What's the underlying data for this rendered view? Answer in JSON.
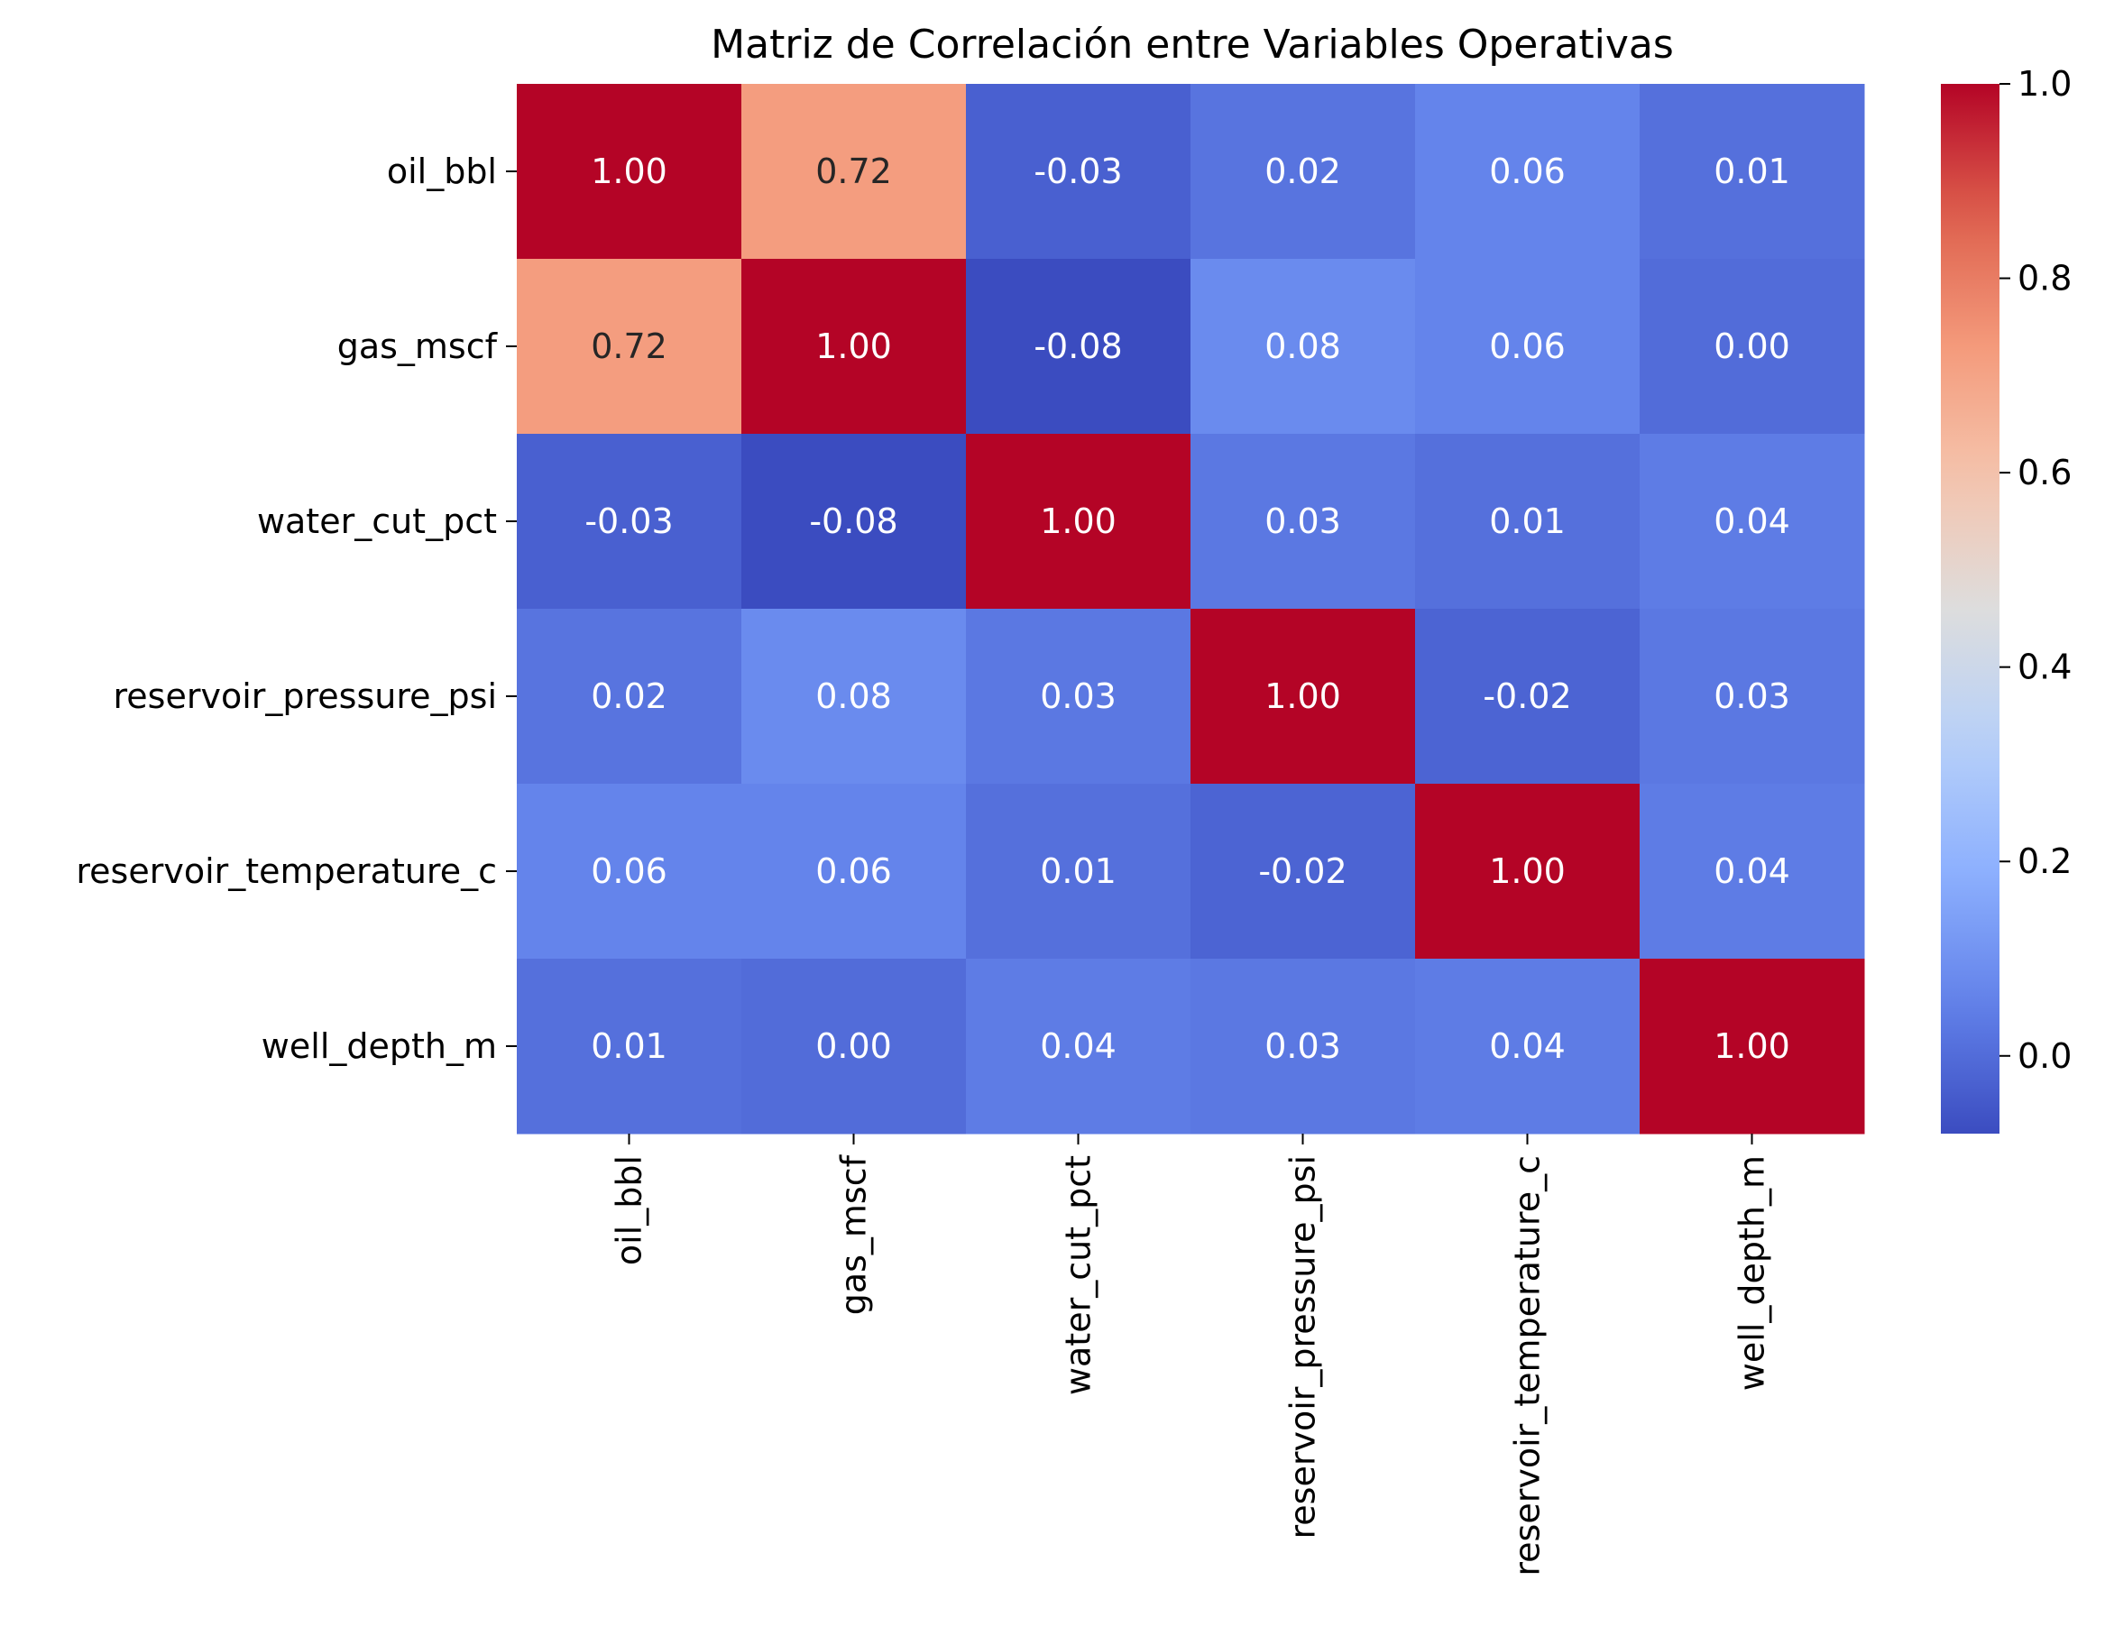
{
  "chart_data": {
    "type": "heatmap",
    "title": "Matriz de Correlación entre Variables Operativas",
    "xlabel": "",
    "ylabel": "",
    "x_labels": [
      "oil_bbl",
      "gas_mscf",
      "water_cut_pct",
      "reservoir_pressure_psi",
      "reservoir_temperature_c",
      "well_depth_m"
    ],
    "y_labels": [
      "oil_bbl",
      "gas_mscf",
      "water_cut_pct",
      "reservoir_pressure_psi",
      "reservoir_temperature_c",
      "well_depth_m"
    ],
    "values": [
      [
        1.0,
        0.72,
        -0.03,
        0.02,
        0.06,
        0.01
      ],
      [
        0.72,
        1.0,
        -0.08,
        0.08,
        0.06,
        0.0
      ],
      [
        -0.03,
        -0.08,
        1.0,
        0.03,
        0.01,
        0.04
      ],
      [
        0.02,
        0.08,
        0.03,
        1.0,
        -0.02,
        0.03
      ],
      [
        0.06,
        0.06,
        0.01,
        -0.02,
        1.0,
        0.04
      ],
      [
        0.01,
        0.0,
        0.04,
        0.03,
        0.04,
        1.0
      ]
    ],
    "value_format": "0.00",
    "colormap": "coolwarm",
    "color_range": [
      -0.08,
      1.0
    ],
    "colorbar": {
      "ticks": [
        0.0,
        0.2,
        0.4,
        0.6,
        0.8,
        1.0
      ],
      "tick_labels": [
        "0.0",
        "0.2",
        "0.4",
        "0.6",
        "0.8",
        "1.0"
      ],
      "placement": "right"
    },
    "grid": false
  }
}
